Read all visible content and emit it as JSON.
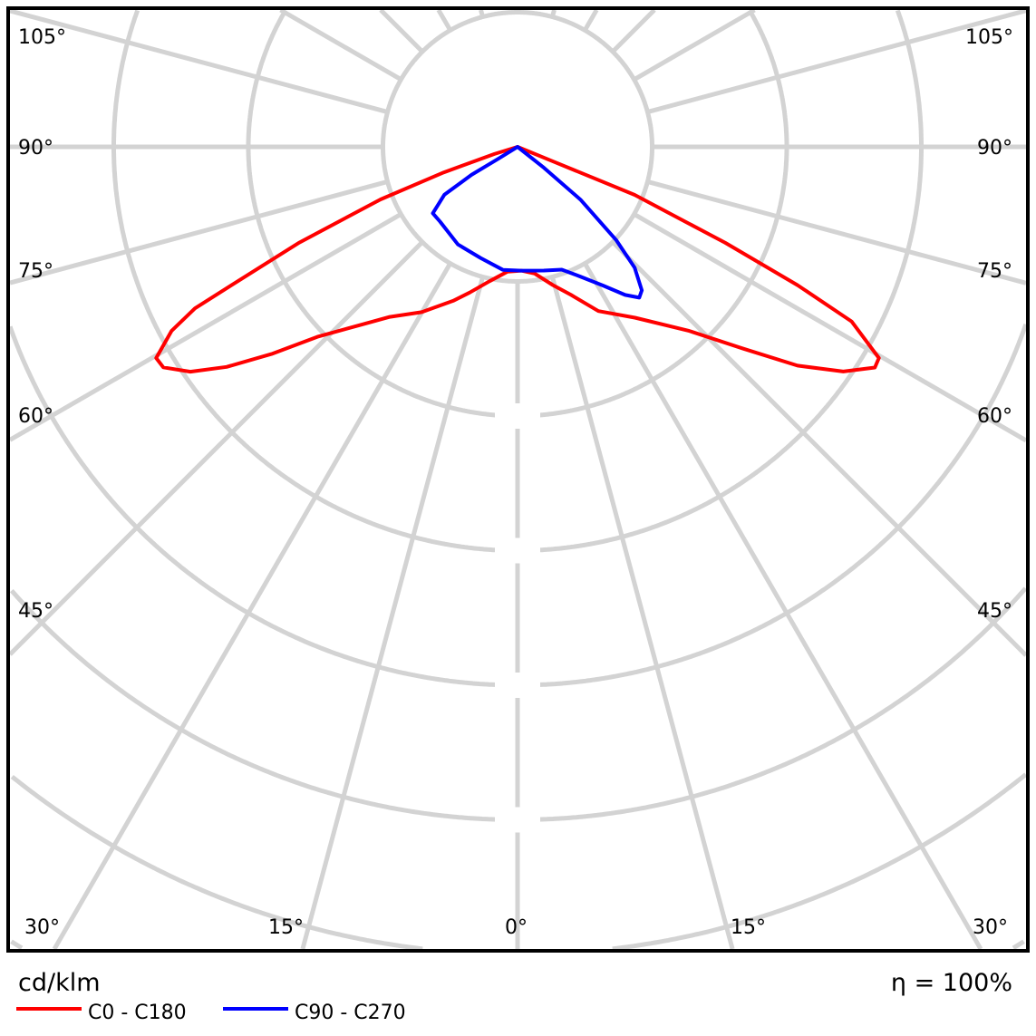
{
  "chart_data": {
    "type": "polar",
    "unit_label": "cd/klm",
    "efficiency_label": "η = 100%",
    "ring_labels_visible": false,
    "angle_ticks_deg": [
      0,
      15,
      30,
      45,
      60,
      75,
      90,
      105
    ],
    "angle_labels": {
      "left": [
        "105°",
        "90°",
        "75°",
        "60°",
        "45°",
        "30°"
      ],
      "right": [
        "105°",
        "90°",
        "75°",
        "60°",
        "45°",
        "30°"
      ],
      "bottom": [
        "30°",
        "15°",
        "0°",
        "15°",
        "30°"
      ]
    },
    "radial_scale_note": "intensity values given in grid-ring units (ring values not printed)",
    "grid": true,
    "grid_color": "#d3d3d3",
    "series": [
      {
        "name": "C0 - C180",
        "color": "#ff0000",
        "C0": [
          [
            67.7,
            0.28
          ],
          [
            67.7,
            0.94
          ],
          [
            65.2,
            1.7
          ],
          [
            63.7,
            2.32
          ],
          [
            62.4,
            2.8
          ],
          [
            59.7,
            3.11
          ],
          [
            58.3,
            3.12
          ],
          [
            55.4,
            2.94
          ],
          [
            52.0,
            2.64
          ],
          [
            48.2,
            2.25
          ],
          [
            43.0,
            1.87
          ],
          [
            34.5,
            1.54
          ],
          [
            26.2,
            1.36
          ],
          [
            19.9,
            1.17
          ],
          [
            14.3,
            1.06
          ],
          [
            7.7,
            0.95
          ],
          [
            1.7,
            0.92
          ]
        ],
        "C180": [
          [
            4.6,
            0.93
          ],
          [
            11.8,
            1.02
          ],
          [
            18.2,
            1.14
          ],
          [
            22.7,
            1.24
          ],
          [
            30.1,
            1.42
          ],
          [
            36.9,
            1.58
          ],
          [
            41.1,
            1.75
          ],
          [
            46.5,
            2.05
          ],
          [
            49.9,
            2.39
          ],
          [
            52.9,
            2.71
          ],
          [
            55.5,
            2.95
          ],
          [
            58.1,
            3.1
          ],
          [
            59.7,
            3.11
          ],
          [
            62.0,
            2.91
          ],
          [
            63.4,
            2.68
          ],
          [
            64.2,
            2.36
          ],
          [
            66.3,
            1.77
          ],
          [
            69.0,
            1.09
          ],
          [
            70.9,
            0.58
          ],
          [
            72.9,
            0.18
          ]
        ]
      },
      {
        "name": "C90 - C270",
        "color": "#0000ff",
        "C90": [
          [
            51.6,
            0.25
          ],
          [
            50.0,
            0.61
          ],
          [
            46.6,
            1.01
          ],
          [
            44.1,
            1.25
          ],
          [
            40.9,
            1.41
          ],
          [
            38.9,
            1.44
          ],
          [
            36.0,
            1.36
          ],
          [
            31.6,
            1.21
          ],
          [
            25.8,
            1.07
          ],
          [
            19.8,
            0.97
          ],
          [
            12.0,
            0.94
          ],
          [
            1.7,
            0.92
          ]
        ],
        "C270": [
          [
            6.8,
            0.92
          ],
          [
            18.4,
            0.87
          ],
          [
            31.4,
            0.85
          ],
          [
            46.0,
            0.8
          ],
          [
            51.9,
            0.8
          ],
          [
            56.8,
            0.65
          ],
          [
            58.7,
            0.4
          ],
          [
            58.2,
            0.17
          ]
        ]
      }
    ]
  }
}
